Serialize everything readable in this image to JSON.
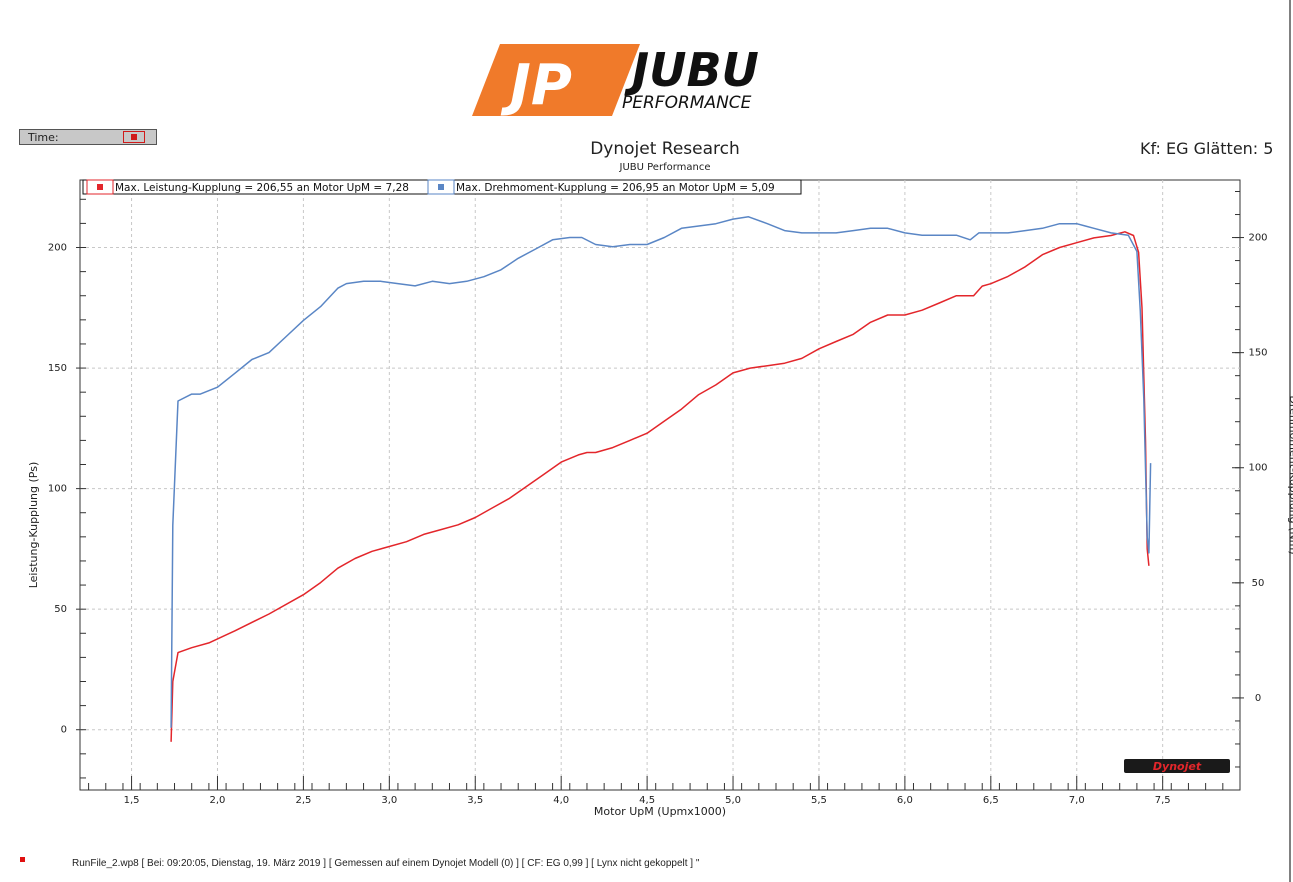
{
  "logo": {
    "mark": "JP",
    "name": "JUBU",
    "tagline": "PERFORMANCE"
  },
  "time_control": {
    "label": "Time:"
  },
  "header": {
    "title": "Dynojet Research",
    "subtitle": "JUBU Performance",
    "right_info": "Kf: EG Glätten: 5"
  },
  "legend": [
    {
      "text": "Max. Leistung-Kupplung = 206,55 an Motor UpM = 7,28",
      "color": "#e3262b"
    },
    {
      "text": "Max. Drehmoment-Kupplung = 206,95 an Motor UpM = 5,09",
      "color": "#5a86c5"
    }
  ],
  "watermark": "Dynojet",
  "footer": {
    "text": "RunFile_2.wp8 [ Bei: 09:20:05, Dienstag, 19. März 2019 ] [ Gemessen auf einem Dynojet Modell (0) ] [ CF: EG 0,99 ] [ Lynx nicht gekoppelt ] \""
  },
  "chart_data": {
    "type": "line",
    "xlabel": "Motor UpM (Upmx1000)",
    "ylabel_left": "Leistung-Kupplung (Ps)",
    "ylabel_right": "Drehmoment-Kupplung (Nm)",
    "xlim": [
      1.2,
      7.95
    ],
    "ylim_left": [
      -25,
      228
    ],
    "ylim_right": [
      -40,
      225
    ],
    "x_ticks": [
      "1,5",
      "2,0",
      "2,5",
      "3,0",
      "3,5",
      "4,0",
      "4,5",
      "5,0",
      "5,5",
      "6,0",
      "6,5",
      "7,0",
      "7,5"
    ],
    "x_tick_values": [
      1.5,
      2.0,
      2.5,
      3.0,
      3.5,
      4.0,
      4.5,
      5.0,
      5.5,
      6.0,
      6.5,
      7.0,
      7.5
    ],
    "y_ticks_left": [
      "0",
      "50",
      "100",
      "150",
      "200"
    ],
    "y_tick_values_left": [
      0,
      50,
      100,
      150,
      200
    ],
    "y_ticks_right": [
      "0",
      "50",
      "100",
      "150",
      "200"
    ],
    "y_tick_values_right": [
      0,
      50,
      100,
      150,
      200
    ],
    "grid": true,
    "series": [
      {
        "name": "Leistung-Kupplung",
        "axis": "left",
        "color": "#e3262b",
        "points": [
          [
            1.73,
            -5
          ],
          [
            1.74,
            20
          ],
          [
            1.77,
            32
          ],
          [
            1.85,
            34
          ],
          [
            1.95,
            36
          ],
          [
            2.1,
            41
          ],
          [
            2.3,
            48
          ],
          [
            2.5,
            56
          ],
          [
            2.6,
            61
          ],
          [
            2.7,
            67
          ],
          [
            2.8,
            71
          ],
          [
            2.9,
            74
          ],
          [
            3.0,
            76
          ],
          [
            3.1,
            78
          ],
          [
            3.2,
            81
          ],
          [
            3.3,
            83
          ],
          [
            3.4,
            85
          ],
          [
            3.5,
            88
          ],
          [
            3.6,
            92
          ],
          [
            3.7,
            96
          ],
          [
            3.8,
            101
          ],
          [
            3.9,
            106
          ],
          [
            4.0,
            111
          ],
          [
            4.1,
            114
          ],
          [
            4.15,
            115
          ],
          [
            4.2,
            115
          ],
          [
            4.3,
            117
          ],
          [
            4.4,
            120
          ],
          [
            4.5,
            123
          ],
          [
            4.6,
            128
          ],
          [
            4.7,
            133
          ],
          [
            4.8,
            139
          ],
          [
            4.9,
            143
          ],
          [
            5.0,
            148
          ],
          [
            5.1,
            150
          ],
          [
            5.2,
            151
          ],
          [
            5.3,
            152
          ],
          [
            5.4,
            154
          ],
          [
            5.5,
            158
          ],
          [
            5.6,
            161
          ],
          [
            5.7,
            164
          ],
          [
            5.8,
            169
          ],
          [
            5.9,
            172
          ],
          [
            6.0,
            172
          ],
          [
            6.1,
            174
          ],
          [
            6.2,
            177
          ],
          [
            6.3,
            180
          ],
          [
            6.35,
            180
          ],
          [
            6.4,
            180
          ],
          [
            6.45,
            184
          ],
          [
            6.5,
            185
          ],
          [
            6.6,
            188
          ],
          [
            6.7,
            192
          ],
          [
            6.8,
            197
          ],
          [
            6.9,
            200
          ],
          [
            7.0,
            202
          ],
          [
            7.1,
            204
          ],
          [
            7.2,
            205
          ],
          [
            7.28,
            206.5
          ],
          [
            7.33,
            205
          ],
          [
            7.36,
            198
          ],
          [
            7.38,
            175
          ],
          [
            7.4,
            120
          ],
          [
            7.41,
            75
          ],
          [
            7.42,
            68
          ]
        ]
      },
      {
        "name": "Drehmoment-Kupplung",
        "axis": "right",
        "color": "#5a86c5",
        "points": [
          [
            1.73,
            -13
          ],
          [
            1.74,
            75
          ],
          [
            1.77,
            129
          ],
          [
            1.85,
            132
          ],
          [
            1.9,
            132
          ],
          [
            2.0,
            135
          ],
          [
            2.1,
            141
          ],
          [
            2.2,
            147
          ],
          [
            2.3,
            150
          ],
          [
            2.4,
            157
          ],
          [
            2.5,
            164
          ],
          [
            2.6,
            170
          ],
          [
            2.7,
            178
          ],
          [
            2.75,
            180
          ],
          [
            2.85,
            181
          ],
          [
            2.95,
            181
          ],
          [
            3.05,
            180
          ],
          [
            3.15,
            179
          ],
          [
            3.25,
            181
          ],
          [
            3.35,
            180
          ],
          [
            3.45,
            181
          ],
          [
            3.55,
            183
          ],
          [
            3.65,
            186
          ],
          [
            3.75,
            191
          ],
          [
            3.85,
            195
          ],
          [
            3.95,
            199
          ],
          [
            4.05,
            200
          ],
          [
            4.12,
            200
          ],
          [
            4.2,
            197
          ],
          [
            4.3,
            196
          ],
          [
            4.4,
            197
          ],
          [
            4.5,
            197
          ],
          [
            4.6,
            200
          ],
          [
            4.7,
            204
          ],
          [
            4.8,
            205
          ],
          [
            4.9,
            206
          ],
          [
            5.0,
            208
          ],
          [
            5.09,
            209
          ],
          [
            5.2,
            206
          ],
          [
            5.3,
            203
          ],
          [
            5.4,
            202
          ],
          [
            5.5,
            202
          ],
          [
            5.6,
            202
          ],
          [
            5.7,
            203
          ],
          [
            5.8,
            204
          ],
          [
            5.9,
            204
          ],
          [
            6.0,
            202
          ],
          [
            6.1,
            201
          ],
          [
            6.2,
            201
          ],
          [
            6.3,
            201
          ],
          [
            6.38,
            199
          ],
          [
            6.43,
            202
          ],
          [
            6.5,
            202
          ],
          [
            6.6,
            202
          ],
          [
            6.7,
            203
          ],
          [
            6.8,
            204
          ],
          [
            6.9,
            206
          ],
          [
            7.0,
            206
          ],
          [
            7.05,
            205
          ],
          [
            7.1,
            204
          ],
          [
            7.2,
            202
          ],
          [
            7.3,
            201
          ],
          [
            7.35,
            194
          ],
          [
            7.37,
            168
          ],
          [
            7.39,
            130
          ],
          [
            7.41,
            70
          ],
          [
            7.42,
            63
          ],
          [
            7.43,
            102
          ]
        ]
      }
    ]
  }
}
